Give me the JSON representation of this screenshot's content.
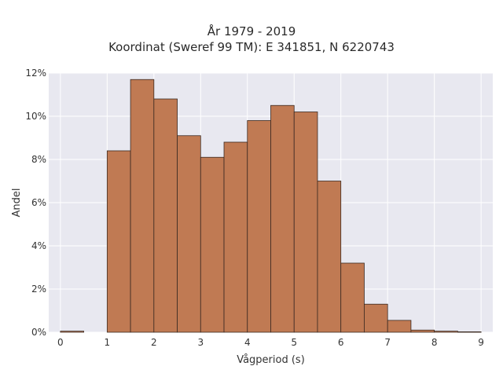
{
  "chart_data": {
    "type": "bar",
    "title_lines": [
      "År 1979 - 2019",
      "Koordinat (Sweref 99 TM): E 341851, N 6220743"
    ],
    "xlabel": "Vågperiod (s)",
    "ylabel": "Andel",
    "xlim": [
      -0.25,
      9.25
    ],
    "ylim": [
      0,
      0.12
    ],
    "x_ticks": [
      0,
      1,
      2,
      3,
      4,
      5,
      6,
      7,
      8,
      9
    ],
    "x_tick_labels": [
      "0",
      "1",
      "2",
      "3",
      "4",
      "5",
      "6",
      "7",
      "8",
      "9"
    ],
    "y_ticks": [
      0,
      0.02,
      0.04,
      0.06,
      0.08,
      0.1,
      0.12
    ],
    "y_tick_labels": [
      "0%",
      "2%",
      "4%",
      "6%",
      "8%",
      "10%",
      "12%"
    ],
    "bin_width": 0.5,
    "bins": [
      {
        "x0": 0.0,
        "value": 0.0005
      },
      {
        "x0": 1.0,
        "value": 0.084
      },
      {
        "x0": 1.5,
        "value": 0.117
      },
      {
        "x0": 2.0,
        "value": 0.108
      },
      {
        "x0": 2.5,
        "value": 0.091
      },
      {
        "x0": 3.0,
        "value": 0.081
      },
      {
        "x0": 3.5,
        "value": 0.088
      },
      {
        "x0": 4.0,
        "value": 0.098
      },
      {
        "x0": 4.5,
        "value": 0.105
      },
      {
        "x0": 5.0,
        "value": 0.102
      },
      {
        "x0": 5.5,
        "value": 0.07
      },
      {
        "x0": 6.0,
        "value": 0.032
      },
      {
        "x0": 6.5,
        "value": 0.013
      },
      {
        "x0": 7.0,
        "value": 0.0055
      },
      {
        "x0": 7.5,
        "value": 0.001
      },
      {
        "x0": 8.0,
        "value": 0.0005
      },
      {
        "x0": 8.5,
        "value": 0.0002
      }
    ],
    "grid": true,
    "bar_color": "#c07a53",
    "bar_edge_color": "#3b2a22",
    "plot_background": "#e8e8f0",
    "grid_color": "#ffffff"
  }
}
